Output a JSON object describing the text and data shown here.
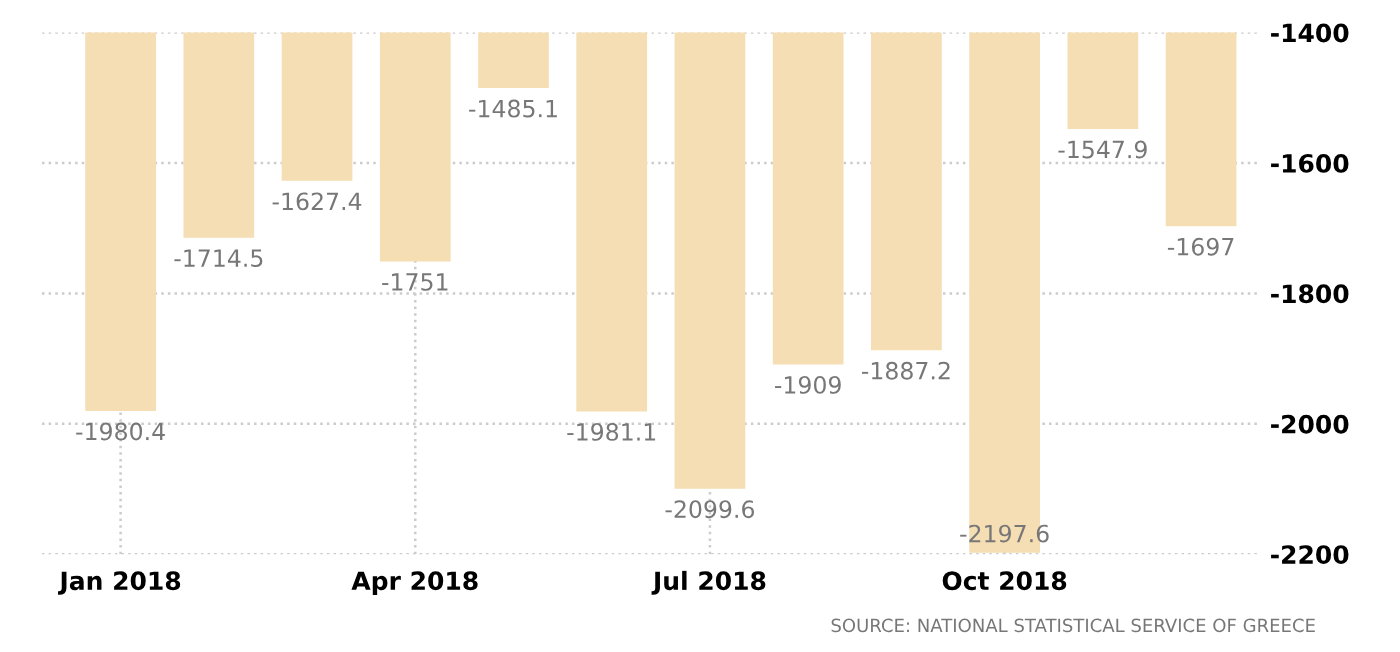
{
  "chart_data": {
    "type": "bar",
    "categories": [
      "Jan 2018",
      null,
      null,
      "Apr 2018",
      null,
      null,
      "Jul 2018",
      null,
      null,
      "Oct 2018",
      null,
      null
    ],
    "values": [
      -1980.4,
      -1714.5,
      -1627.4,
      -1751,
      -1485.1,
      -1981.1,
      -2099.6,
      -1909,
      -1887.2,
      -2197.6,
      -1547.9,
      -1697
    ],
    "color": "#f5deb3",
    "ylim": [
      -2200,
      -1400
    ],
    "yticks": [
      -1400,
      -1600,
      -1800,
      -2000,
      -2200
    ],
    "grid": true,
    "data_labels": true,
    "annotations": [
      "SOURCE: NATIONAL STATISTICAL SERVICE OF GREECE"
    ]
  }
}
